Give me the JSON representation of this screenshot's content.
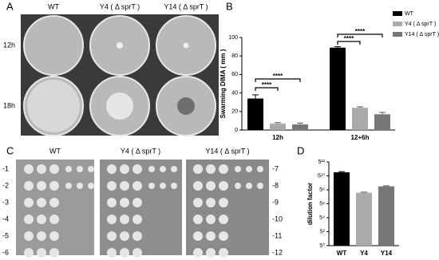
{
  "panels": {
    "labels": [
      "A",
      "B",
      "C",
      "D"
    ],
    "a": {
      "columns": [
        "WT",
        "Y4 ( Δ sprT )",
        "Y14 ( Δ sprT )"
      ],
      "rows": [
        "12h",
        "18h"
      ]
    },
    "c": {
      "columns": [
        "WT",
        "Y4 ( Δ sprT )",
        "Y14 ( Δ sprT )"
      ],
      "rows_left": [
        "-1",
        "-2",
        "-3",
        "-4",
        "-5",
        "-6"
      ],
      "rows_right": [
        "-7",
        "-8",
        "-9",
        "-10",
        "-11",
        "-12"
      ]
    }
  },
  "chart_data": [
    {
      "type": "bar",
      "y_label": "Swarming DIMA ( mm )",
      "categories": [
        "12h",
        "12+6h"
      ],
      "series": [
        {
          "name": "WT",
          "color": "#000000",
          "values": [
            34,
            89
          ],
          "errors": [
            4,
            1
          ]
        },
        {
          "name": "Y4 ( Δ sprT )",
          "color": "#aaaaaa",
          "values": [
            7,
            24
          ],
          "errors": [
            1,
            1
          ]
        },
        {
          "name": "Y14 ( Δ sprT )",
          "color": "#777777",
          "values": [
            6,
            17
          ],
          "errors": [
            1.5,
            2
          ]
        }
      ],
      "ylim": [
        0,
        100
      ],
      "yticks": [
        0,
        20,
        40,
        60,
        80,
        100
      ],
      "annotations": [
        "****",
        "****",
        "****",
        "****"
      ],
      "legend": "upper-right"
    },
    {
      "type": "bar",
      "y_label": "dilution factor",
      "categories": [
        "WT",
        "Y4",
        "Y14"
      ],
      "values": [
        22000000,
        200000,
        870000
      ],
      "errors": [
        4000000,
        30000,
        120000
      ],
      "colors": [
        "#000000",
        "#aaaaaa",
        "#777777"
      ],
      "yscale": "log",
      "ylim": [
        1,
        244140625
      ],
      "yticks": [
        {
          "value": 1,
          "label": "5⁰"
        },
        {
          "value": 25,
          "label": "5²"
        },
        {
          "value": 625,
          "label": "5⁴"
        },
        {
          "value": 15625,
          "label": "5⁶"
        },
        {
          "value": 390625,
          "label": "5⁸"
        },
        {
          "value": 9765625,
          "label": "5¹⁰"
        },
        {
          "value": 244140625,
          "label": "5¹²"
        }
      ]
    }
  ]
}
